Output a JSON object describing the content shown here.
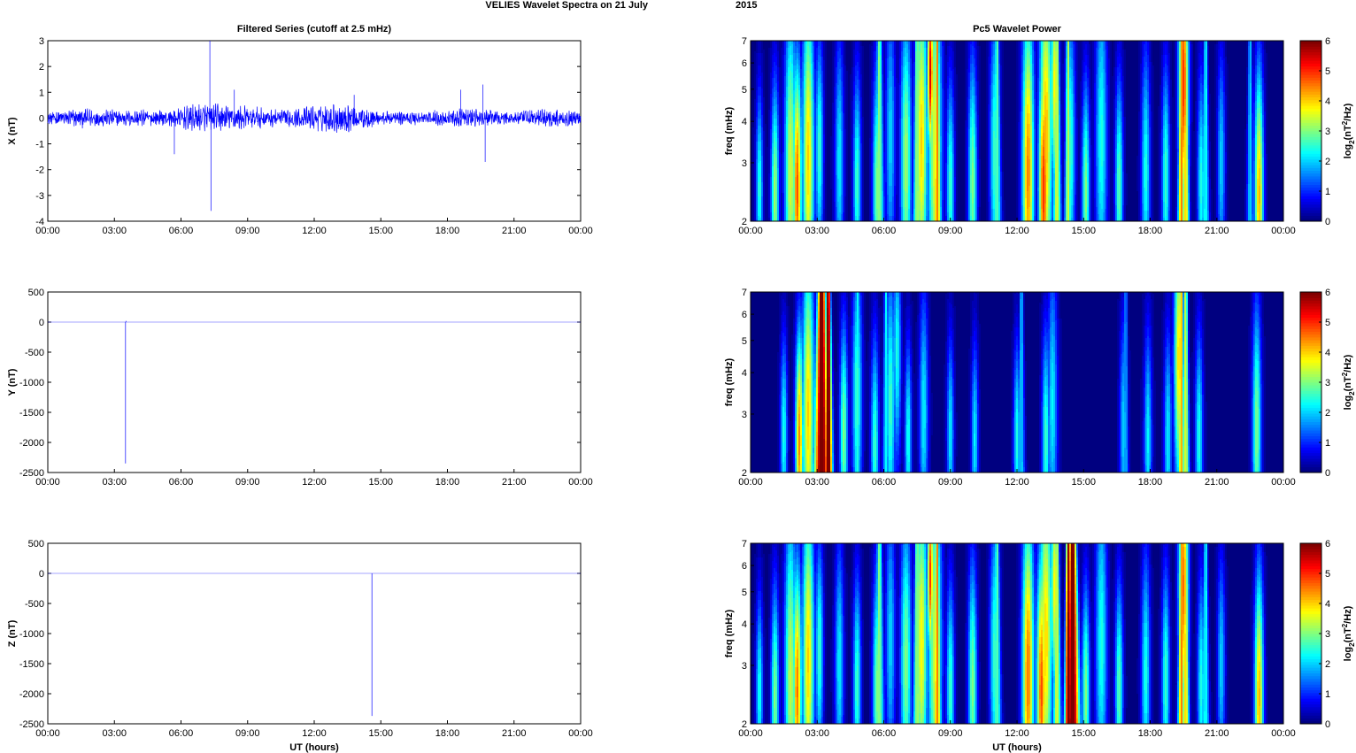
{
  "figure": {
    "suptitle_a": "VELIES Wavelet Spectra on 21 July",
    "suptitle_b": "2015"
  },
  "chart_data": [
    {
      "type": "line",
      "panel": "X-filtered",
      "title": "Filtered Series (cutoff at 2.5 mHz)",
      "xlabel": "",
      "ylabel": "X (nT)",
      "xlim": [
        "00:00",
        "00:00"
      ],
      "ylim": [
        -4,
        3
      ],
      "xticks": [
        "00:00",
        "03:00",
        "06:00",
        "09:00",
        "12:00",
        "15:00",
        "18:00",
        "21:00",
        "00:00"
      ],
      "yticks": [
        "3",
        "2",
        "1",
        "0",
        "-1",
        "-2",
        "-3",
        "-4"
      ],
      "series_color": "#0000ff",
      "noise_envelope_nT": [
        [
          0,
          0.2
        ],
        [
          1.5,
          0.3
        ],
        [
          3,
          0.25
        ],
        [
          5.5,
          0.25
        ],
        [
          6.8,
          0.45
        ],
        [
          8.5,
          0.4
        ],
        [
          10.5,
          0.25
        ],
        [
          13.5,
          0.5
        ],
        [
          15,
          0.2
        ],
        [
          18,
          0.25
        ],
        [
          19,
          0.3
        ],
        [
          21,
          0.2
        ],
        [
          22.5,
          0.3
        ],
        [
          24,
          0.2
        ]
      ],
      "spikes": [
        [
          5.7,
          -1.4
        ],
        [
          7.3,
          3.0
        ],
        [
          7.35,
          -3.6
        ],
        [
          8.4,
          1.1
        ],
        [
          13.8,
          0.9
        ],
        [
          18.6,
          1.1
        ],
        [
          19.6,
          1.3
        ],
        [
          19.7,
          -1.7
        ]
      ],
      "grid": false
    },
    {
      "type": "line",
      "panel": "Y-filtered",
      "title": "",
      "xlabel": "",
      "ylabel": "Y (nT)",
      "xlim": [
        "00:00",
        "00:00"
      ],
      "ylim": [
        -2500,
        500
      ],
      "xticks": [
        "00:00",
        "03:00",
        "06:00",
        "09:00",
        "12:00",
        "15:00",
        "18:00",
        "21:00",
        "00:00"
      ],
      "yticks": [
        "500",
        "0",
        "-500",
        "-1000",
        "-1500",
        "-2000",
        "-2500"
      ],
      "series_color": "#0000ff",
      "spikes": [
        [
          3.5,
          -2350
        ],
        [
          3.52,
          20
        ]
      ],
      "grid": false
    },
    {
      "type": "line",
      "panel": "Z-filtered",
      "title": "",
      "xlabel": "UT (hours)",
      "ylabel": "Z (nT)",
      "xlim": [
        "00:00",
        "00:00"
      ],
      "ylim": [
        -2500,
        500
      ],
      "xticks": [
        "00:00",
        "03:00",
        "06:00",
        "09:00",
        "12:00",
        "15:00",
        "18:00",
        "21:00",
        "00:00"
      ],
      "yticks": [
        "500",
        "0",
        "-500",
        "-1000",
        "-1500",
        "-2000",
        "-2500"
      ],
      "series_color": "#0000ff",
      "spikes": [
        [
          14.6,
          -2370
        ]
      ],
      "grid": false
    },
    {
      "type": "heatmap",
      "panel": "X-wavelet",
      "title": "Pc5 Wavelet Power",
      "xlabel": "",
      "ylabel": "freq (mHz)",
      "colorbar_label": "log2(nT^2/Hz)",
      "colorbar_ticks": [
        "6",
        "5",
        "4",
        "3",
        "2",
        "1",
        "0"
      ],
      "clim": [
        0,
        6
      ],
      "ylim": [
        2,
        7
      ],
      "yscale": "log",
      "xticks": [
        "00:00",
        "03:00",
        "06:00",
        "09:00",
        "12:00",
        "15:00",
        "18:00",
        "21:00",
        "00:00"
      ],
      "yticks": [
        "7",
        "6",
        "5",
        "4",
        "3",
        "2"
      ],
      "colormap": "jet",
      "blobs": [
        [
          0.4,
          2.5,
          0.7,
          2.5
        ],
        [
          1.1,
          2.4,
          0.8,
          3.2
        ],
        [
          1.8,
          2.8,
          1.2,
          3.5
        ],
        [
          2.1,
          2.5,
          0.9,
          4.8
        ],
        [
          2.6,
          3.1,
          1.2,
          4.0
        ],
        [
          3.1,
          3.3,
          0.8,
          2.6
        ],
        [
          4.0,
          3.0,
          0.9,
          2.2
        ],
        [
          4.8,
          2.6,
          0.8,
          2.6
        ],
        [
          5.7,
          2.5,
          0.9,
          3.0
        ],
        [
          6.3,
          3.6,
          1.0,
          2.0
        ],
        [
          7.0,
          3.0,
          1.1,
          3.2
        ],
        [
          7.7,
          3.5,
          1.2,
          4.0
        ],
        [
          8.3,
          3.4,
          1.4,
          3.6
        ],
        [
          8.1,
          5.6,
          0.6,
          5.5
        ],
        [
          9.0,
          2.5,
          0.8,
          2.6
        ],
        [
          10.0,
          2.6,
          0.9,
          3.0
        ],
        [
          11.0,
          3.2,
          1.0,
          2.6
        ],
        [
          12.5,
          2.8,
          1.2,
          4.5
        ],
        [
          13.2,
          2.5,
          1.0,
          5.0
        ],
        [
          13.3,
          3.6,
          1.3,
          4.2
        ],
        [
          13.7,
          5.2,
          0.8,
          3.8
        ],
        [
          14.4,
          3.3,
          1.0,
          2.6
        ],
        [
          15.1,
          2.4,
          0.8,
          3.0
        ],
        [
          15.8,
          3.5,
          1.2,
          2.4
        ],
        [
          16.6,
          2.5,
          0.8,
          2.8
        ],
        [
          17.8,
          2.8,
          0.9,
          2.4
        ],
        [
          18.7,
          2.7,
          0.8,
          2.6
        ],
        [
          19.5,
          5.2,
          1.0,
          5.0
        ],
        [
          20.3,
          2.6,
          0.8,
          2.4
        ],
        [
          21.2,
          3.0,
          0.8,
          2.0
        ],
        [
          22.9,
          2.4,
          0.9,
          4.2
        ]
      ],
      "plumes": [
        [
          5.8,
          0.35,
          3.0
        ],
        [
          7.5,
          0.3,
          3.2
        ],
        [
          8.4,
          0.3,
          4.5
        ],
        [
          11.1,
          0.3,
          2.8
        ],
        [
          13.8,
          0.3,
          3.5
        ],
        [
          14.3,
          0.25,
          3.4
        ],
        [
          19.4,
          0.25,
          4.5
        ],
        [
          19.6,
          0.25,
          4.0
        ],
        [
          20.5,
          0.25,
          2.4
        ],
        [
          22.5,
          0.25,
          2.0
        ]
      ],
      "grid": false
    },
    {
      "type": "heatmap",
      "panel": "Y-wavelet",
      "title": "",
      "xlabel": "",
      "ylabel": "freq (mHz)",
      "colorbar_label": "log2(nT^2/Hz)",
      "colorbar_ticks": [
        "6",
        "5",
        "4",
        "3",
        "2",
        "1",
        "0"
      ],
      "clim": [
        0,
        6
      ],
      "ylim": [
        2,
        7
      ],
      "yscale": "log",
      "xticks": [
        "00:00",
        "03:00",
        "06:00",
        "09:00",
        "12:00",
        "15:00",
        "18:00",
        "21:00",
        "00:00"
      ],
      "yticks": [
        "7",
        "6",
        "5",
        "4",
        "3",
        "2"
      ],
      "colormap": "jet",
      "blobs": [
        [
          1.5,
          2.6,
          0.7,
          2.4
        ],
        [
          2.2,
          2.5,
          0.8,
          4.5
        ],
        [
          2.6,
          3.0,
          1.2,
          4.0
        ],
        [
          4.2,
          2.6,
          0.8,
          3.0
        ],
        [
          4.8,
          3.4,
          1.0,
          2.6
        ],
        [
          5.6,
          2.4,
          0.8,
          2.6
        ],
        [
          6.3,
          3.2,
          1.0,
          2.6
        ],
        [
          6.6,
          4.6,
          0.8,
          2.4
        ],
        [
          7.1,
          2.5,
          0.7,
          2.4
        ],
        [
          7.8,
          3.0,
          0.9,
          2.2
        ],
        [
          9.0,
          2.6,
          0.7,
          2.2
        ],
        [
          10.1,
          2.5,
          0.7,
          2.2
        ],
        [
          12.0,
          2.5,
          0.7,
          2.4
        ],
        [
          13.3,
          2.5,
          0.8,
          2.6
        ],
        [
          13.6,
          3.2,
          1.0,
          2.2
        ],
        [
          16.8,
          2.7,
          0.8,
          2.0
        ],
        [
          17.9,
          2.5,
          0.8,
          2.2
        ],
        [
          18.8,
          2.5,
          0.8,
          2.2
        ],
        [
          19.3,
          4.4,
          1.0,
          4.0
        ],
        [
          20.2,
          2.5,
          0.8,
          2.4
        ],
        [
          22.8,
          2.7,
          0.9,
          3.0
        ]
      ],
      "plumes": [
        [
          3.2,
          0.55,
          6.5
        ],
        [
          3.5,
          0.3,
          6.5
        ],
        [
          4.8,
          0.25,
          2.4
        ],
        [
          6.1,
          0.25,
          2.2
        ],
        [
          12.2,
          0.25,
          2.0
        ],
        [
          16.9,
          0.2,
          1.8
        ],
        [
          19.4,
          0.25,
          4.2
        ],
        [
          19.6,
          0.25,
          3.6
        ]
      ],
      "grid": false
    },
    {
      "type": "heatmap",
      "panel": "Z-wavelet",
      "title": "",
      "xlabel": "UT (hours)",
      "ylabel": "freq (mHz)",
      "colorbar_label": "log2(nT^2/Hz)",
      "colorbar_ticks": [
        "6",
        "5",
        "4",
        "3",
        "2",
        "1",
        "0"
      ],
      "clim": [
        0,
        6
      ],
      "ylim": [
        2,
        7
      ],
      "yscale": "log",
      "xticks": [
        "00:00",
        "03:00",
        "06:00",
        "09:00",
        "12:00",
        "15:00",
        "18:00",
        "21:00",
        "00:00"
      ],
      "yticks": [
        "7",
        "6",
        "5",
        "4",
        "3",
        "2"
      ],
      "colormap": "jet",
      "blobs": [
        [
          0.4,
          2.5,
          0.7,
          2.4
        ],
        [
          1.1,
          2.4,
          0.8,
          3.0
        ],
        [
          1.8,
          2.8,
          1.2,
          3.4
        ],
        [
          2.1,
          2.5,
          0.9,
          4.6
        ],
        [
          2.6,
          3.1,
          1.2,
          4.0
        ],
        [
          3.1,
          3.3,
          0.8,
          2.6
        ],
        [
          4.0,
          3.0,
          0.9,
          2.2
        ],
        [
          4.8,
          2.6,
          0.8,
          2.6
        ],
        [
          5.7,
          2.5,
          0.9,
          3.0
        ],
        [
          6.3,
          3.6,
          1.0,
          2.0
        ],
        [
          7.0,
          3.0,
          1.1,
          3.0
        ],
        [
          7.7,
          3.5,
          1.2,
          3.8
        ],
        [
          8.3,
          3.4,
          1.4,
          3.4
        ],
        [
          8.1,
          5.6,
          0.6,
          5.0
        ],
        [
          9.0,
          2.5,
          0.8,
          2.6
        ],
        [
          10.0,
          2.6,
          0.9,
          3.0
        ],
        [
          11.0,
          3.2,
          1.0,
          2.6
        ],
        [
          12.5,
          2.8,
          1.2,
          4.6
        ],
        [
          13.1,
          2.5,
          1.0,
          4.8
        ],
        [
          13.3,
          3.6,
          1.3,
          4.0
        ],
        [
          13.7,
          5.2,
          0.8,
          3.8
        ],
        [
          15.1,
          2.4,
          0.8,
          3.0
        ],
        [
          15.8,
          3.5,
          1.2,
          2.4
        ],
        [
          16.6,
          2.5,
          0.8,
          2.8
        ],
        [
          17.8,
          2.8,
          0.9,
          2.4
        ],
        [
          18.7,
          2.7,
          0.8,
          2.6
        ],
        [
          19.5,
          5.2,
          1.0,
          4.6
        ],
        [
          20.3,
          2.6,
          0.8,
          2.4
        ],
        [
          21.2,
          3.0,
          0.8,
          2.0
        ],
        [
          22.9,
          2.4,
          0.9,
          4.2
        ]
      ],
      "plumes": [
        [
          14.5,
          0.5,
          6.5
        ],
        [
          14.3,
          0.25,
          6.0
        ],
        [
          5.8,
          0.35,
          3.0
        ],
        [
          7.5,
          0.3,
          3.2
        ],
        [
          8.4,
          0.3,
          4.5
        ],
        [
          11.1,
          0.3,
          2.8
        ],
        [
          13.8,
          0.3,
          3.5
        ],
        [
          19.4,
          0.25,
          4.5
        ],
        [
          19.6,
          0.25,
          4.0
        ],
        [
          20.5,
          0.25,
          2.4
        ]
      ],
      "grid": false
    }
  ]
}
